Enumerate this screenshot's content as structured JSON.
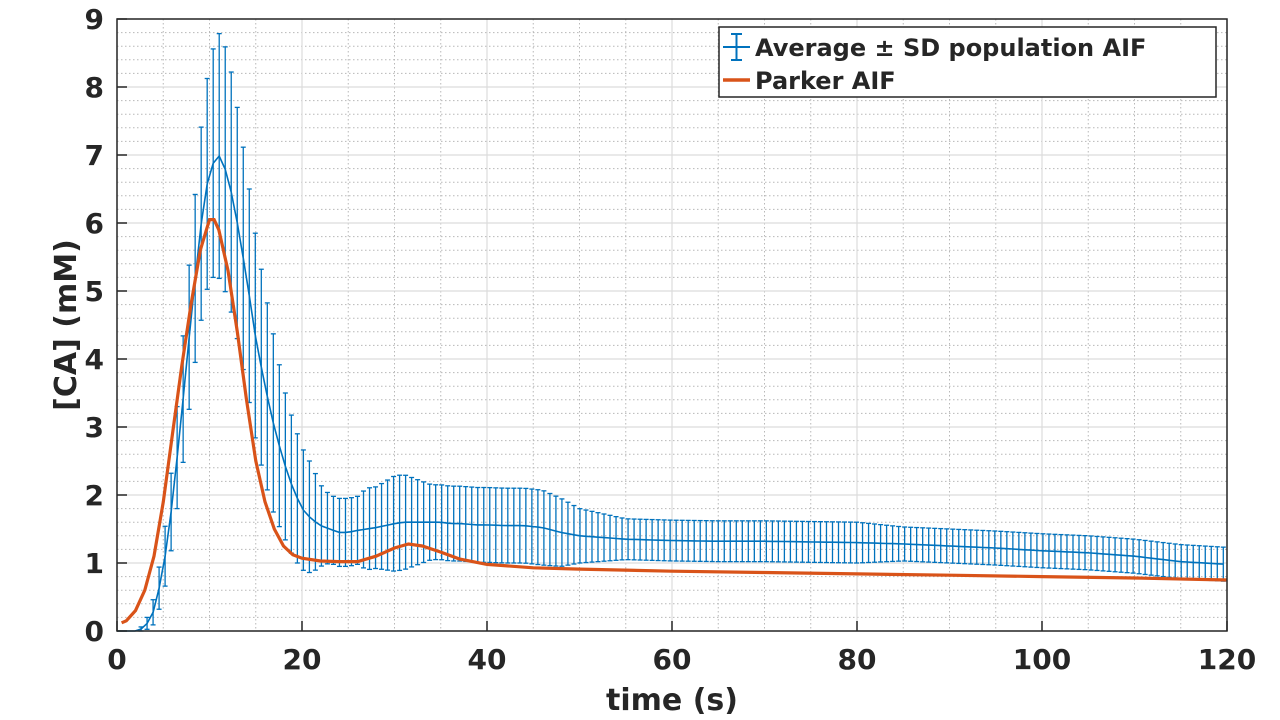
{
  "chart_data": {
    "type": "line",
    "title": "",
    "xlabel": "time (s)",
    "ylabel": "[CA] (mM)",
    "xlim": [
      0,
      120
    ],
    "ylim": [
      0,
      9
    ],
    "x_ticks": [
      "0",
      "20",
      "40",
      "60",
      "80",
      "100",
      "120"
    ],
    "y_ticks": [
      "0",
      "1",
      "2",
      "3",
      "4",
      "5",
      "6",
      "7",
      "8",
      "9"
    ],
    "grid": "major and minor",
    "legend_position": "top-right",
    "series": [
      {
        "name": "Average ± SD population AIF",
        "style": "errorbar",
        "color": "#0072BD",
        "points": [
          [
            0,
            0,
            0
          ],
          [
            1,
            0,
            0
          ],
          [
            2,
            0,
            0
          ],
          [
            3,
            0.05,
            0.05
          ],
          [
            4,
            0.3,
            0.2
          ],
          [
            5,
            0.9,
            0.4
          ],
          [
            6,
            1.9,
            0.6
          ],
          [
            7,
            3.2,
            0.9
          ],
          [
            8,
            4.6,
            1.1
          ],
          [
            9,
            5.9,
            1.4
          ],
          [
            10,
            6.8,
            1.6
          ],
          [
            11,
            7.0,
            1.8
          ],
          [
            12,
            6.7,
            1.8
          ],
          [
            13,
            6.0,
            1.7
          ],
          [
            14,
            5.2,
            1.6
          ],
          [
            15,
            4.3,
            1.5
          ],
          [
            16,
            3.6,
            1.4
          ],
          [
            17,
            3.0,
            1.3
          ],
          [
            18,
            2.5,
            1.1
          ],
          [
            19,
            2.1,
            1.0
          ],
          [
            20,
            1.8,
            0.9
          ],
          [
            21,
            1.65,
            0.8
          ],
          [
            22,
            1.55,
            0.6
          ],
          [
            23,
            1.5,
            0.5
          ],
          [
            24,
            1.45,
            0.5
          ],
          [
            25,
            1.45,
            0.5
          ],
          [
            26,
            1.48,
            0.5
          ],
          [
            27,
            1.5,
            0.6
          ],
          [
            28,
            1.52,
            0.6
          ],
          [
            29,
            1.55,
            0.65
          ],
          [
            30,
            1.58,
            0.7
          ],
          [
            31,
            1.6,
            0.7
          ],
          [
            32,
            1.6,
            0.65
          ],
          [
            33,
            1.6,
            0.6
          ],
          [
            34,
            1.6,
            0.55
          ],
          [
            35,
            1.6,
            0.55
          ],
          [
            36,
            1.58,
            0.55
          ],
          [
            37,
            1.58,
            0.55
          ],
          [
            38,
            1.57,
            0.55
          ],
          [
            39,
            1.56,
            0.55
          ],
          [
            40,
            1.56,
            0.55
          ],
          [
            42,
            1.55,
            0.55
          ],
          [
            44,
            1.55,
            0.55
          ],
          [
            46,
            1.52,
            0.55
          ],
          [
            48,
            1.45,
            0.5
          ],
          [
            50,
            1.4,
            0.4
          ],
          [
            55,
            1.35,
            0.3
          ],
          [
            60,
            1.33,
            0.3
          ],
          [
            65,
            1.32,
            0.3
          ],
          [
            70,
            1.32,
            0.3
          ],
          [
            75,
            1.31,
            0.3
          ],
          [
            80,
            1.3,
            0.3
          ],
          [
            85,
            1.28,
            0.25
          ],
          [
            90,
            1.25,
            0.25
          ],
          [
            95,
            1.22,
            0.25
          ],
          [
            100,
            1.18,
            0.25
          ],
          [
            105,
            1.15,
            0.25
          ],
          [
            110,
            1.1,
            0.25
          ],
          [
            115,
            1.02,
            0.25
          ],
          [
            120,
            0.98,
            0.25
          ]
        ]
      },
      {
        "name": "Parker AIF",
        "style": "line",
        "color": "#D95319",
        "points": [
          [
            0.5,
            0.12
          ],
          [
            1,
            0.15
          ],
          [
            2,
            0.3
          ],
          [
            3,
            0.6
          ],
          [
            4,
            1.1
          ],
          [
            5,
            1.9
          ],
          [
            6,
            2.9
          ],
          [
            7,
            3.9
          ],
          [
            8,
            4.8
          ],
          [
            9,
            5.6
          ],
          [
            10,
            6.05
          ],
          [
            10.5,
            6.05
          ],
          [
            11,
            5.9
          ],
          [
            12,
            5.3
          ],
          [
            13,
            4.4
          ],
          [
            14,
            3.4
          ],
          [
            15,
            2.5
          ],
          [
            16,
            1.9
          ],
          [
            17,
            1.5
          ],
          [
            18,
            1.25
          ],
          [
            19,
            1.12
          ],
          [
            20,
            1.07
          ],
          [
            22,
            1.03
          ],
          [
            24,
            1.02
          ],
          [
            26,
            1.02
          ],
          [
            28,
            1.1
          ],
          [
            30,
            1.22
          ],
          [
            31.5,
            1.28
          ],
          [
            33,
            1.25
          ],
          [
            35,
            1.16
          ],
          [
            37,
            1.06
          ],
          [
            40,
            0.98
          ],
          [
            45,
            0.93
          ],
          [
            50,
            0.91
          ],
          [
            60,
            0.88
          ],
          [
            70,
            0.86
          ],
          [
            80,
            0.84
          ],
          [
            90,
            0.82
          ],
          [
            100,
            0.8
          ],
          [
            110,
            0.78
          ],
          [
            120,
            0.75
          ]
        ]
      }
    ]
  }
}
